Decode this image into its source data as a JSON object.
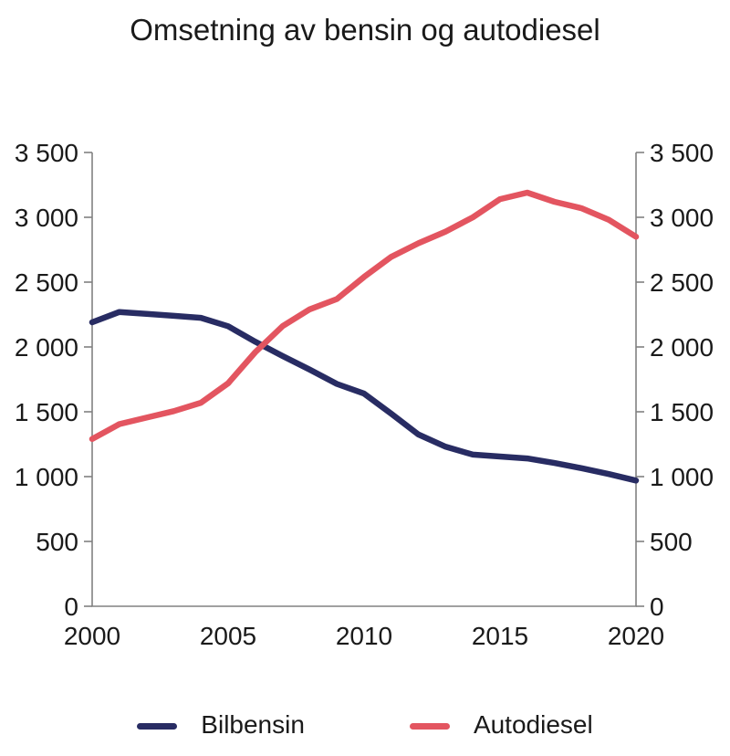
{
  "title": "Omsetning av bensin og autodiesel",
  "chart_data": {
    "type": "line",
    "x": [
      2000,
      2001,
      2002,
      2003,
      2004,
      2005,
      2006,
      2007,
      2008,
      2009,
      2010,
      2011,
      2012,
      2013,
      2014,
      2015,
      2016,
      2017,
      2018,
      2019,
      2020
    ],
    "series": [
      {
        "name": "Bilbensin",
        "color": "#282c63",
        "values": [
          2190,
          2270,
          2255,
          2240,
          2225,
          2160,
          2040,
          1930,
          1825,
          1715,
          1640,
          1485,
          1325,
          1230,
          1170,
          1155,
          1140,
          1105,
          1065,
          1020,
          970
        ]
      },
      {
        "name": "Autodiesel",
        "color": "#e35560",
        "values": [
          1290,
          1405,
          1455,
          1505,
          1570,
          1720,
          1960,
          2160,
          2290,
          2370,
          2540,
          2695,
          2800,
          2890,
          3000,
          3140,
          3190,
          3120,
          3070,
          2980,
          2850
        ]
      }
    ],
    "title": "Omsetning av bensin og autodiesel",
    "xlabel": "",
    "ylabel": "",
    "xlim": [
      2000,
      2020
    ],
    "ylim": [
      0,
      3500
    ],
    "yticks": [
      0,
      500,
      1000,
      1500,
      2000,
      2500,
      3000,
      3500
    ],
    "ytick_labels": [
      "0",
      "500",
      "1 000",
      "1 500",
      "2 000",
      "2 500",
      "3 000",
      "3 500"
    ],
    "xticks": [
      2000,
      2005,
      2010,
      2015,
      2020
    ],
    "xtick_labels": [
      "2000",
      "2005",
      "2010",
      "2015",
      "2020"
    ],
    "grid": false,
    "dual_y_axis": true,
    "legend_position": "bottom",
    "axis_color": "#808080",
    "text_color": "#1a1a1a"
  },
  "legend": {
    "items": [
      {
        "label": "Bilbensin",
        "color": "#282c63"
      },
      {
        "label": "Autodiesel",
        "color": "#e35560"
      }
    ]
  }
}
